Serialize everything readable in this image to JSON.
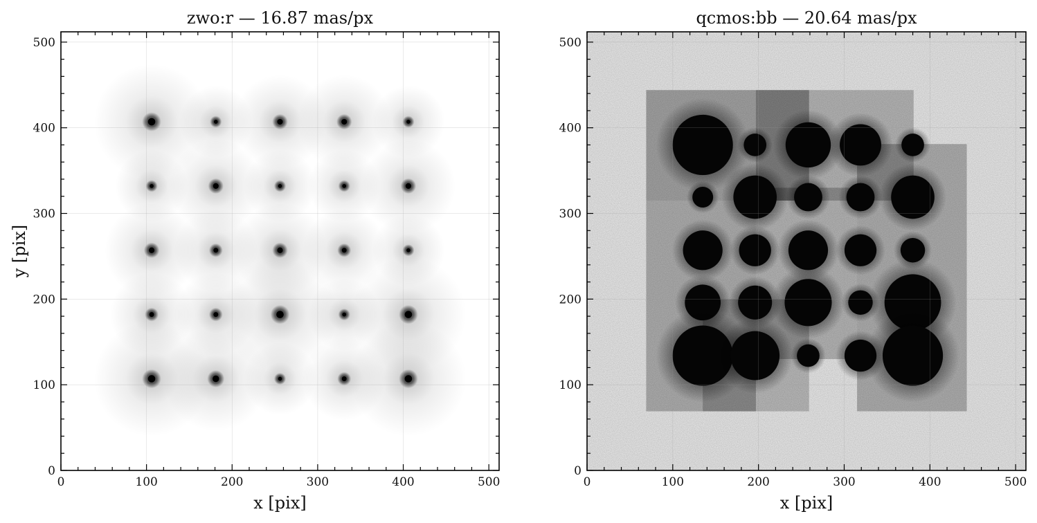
{
  "chart_data": [
    {
      "type": "heatmap",
      "title": "zwo:r — 16.87 mas/px",
      "xlabel": "x [pix]",
      "ylabel": "y [pix]",
      "xlim": [
        0,
        512
      ],
      "ylim": [
        0,
        512
      ],
      "xticks": [
        0,
        100,
        200,
        300,
        400,
        500
      ],
      "yticks": [
        0,
        100,
        200,
        300,
        400,
        500
      ],
      "grid": true,
      "background": "#ffffff",
      "sources": [
        {
          "x": 106,
          "y": 407,
          "size": 3
        },
        {
          "x": 181,
          "y": 407,
          "size": 1
        },
        {
          "x": 256,
          "y": 407,
          "size": 2
        },
        {
          "x": 331,
          "y": 407,
          "size": 2
        },
        {
          "x": 406,
          "y": 407,
          "size": 1
        },
        {
          "x": 106,
          "y": 332,
          "size": 1
        },
        {
          "x": 181,
          "y": 332,
          "size": 2
        },
        {
          "x": 256,
          "y": 332,
          "size": 1
        },
        {
          "x": 331,
          "y": 332,
          "size": 1
        },
        {
          "x": 406,
          "y": 332,
          "size": 2
        },
        {
          "x": 106,
          "y": 257,
          "size": 2
        },
        {
          "x": 181,
          "y": 257,
          "size": 1.5
        },
        {
          "x": 256,
          "y": 257,
          "size": 2
        },
        {
          "x": 331,
          "y": 257,
          "size": 1.5
        },
        {
          "x": 406,
          "y": 257,
          "size": 1
        },
        {
          "x": 106,
          "y": 182,
          "size": 1.5
        },
        {
          "x": 181,
          "y": 182,
          "size": 1.5
        },
        {
          "x": 256,
          "y": 182,
          "size": 3
        },
        {
          "x": 331,
          "y": 182,
          "size": 1
        },
        {
          "x": 406,
          "y": 182,
          "size": 3
        },
        {
          "x": 106,
          "y": 107,
          "size": 3
        },
        {
          "x": 181,
          "y": 107,
          "size": 2.5
        },
        {
          "x": 256,
          "y": 107,
          "size": 1
        },
        {
          "x": 331,
          "y": 107,
          "size": 1.5
        },
        {
          "x": 406,
          "y": 107,
          "size": 3
        }
      ]
    },
    {
      "type": "heatmap",
      "title": "qcmos:bb — 20.64 mas/px",
      "xlabel": "x [pix]",
      "xlim": [
        0,
        512
      ],
      "ylim": [
        0,
        512
      ],
      "xticks": [
        0,
        100,
        200,
        300,
        400,
        500
      ],
      "yticks": [
        0,
        100,
        200,
        300,
        400,
        500
      ],
      "grid": true,
      "background": "#eeeeee",
      "patches": [
        {
          "x0": 69,
          "x1": 259,
          "y0": 315,
          "y1": 444,
          "shade": 0.3
        },
        {
          "x0": 197,
          "x1": 381,
          "y0": 315,
          "y1": 444,
          "shade": 0.22
        },
        {
          "x0": 69,
          "x1": 197,
          "y0": 69,
          "y1": 315,
          "shade": 0.25
        },
        {
          "x0": 197,
          "x1": 315,
          "y0": 130,
          "y1": 330,
          "shade": 0.22
        },
        {
          "x0": 315,
          "x1": 443,
          "y0": 69,
          "y1": 381,
          "shade": 0.25
        },
        {
          "x0": 135,
          "x1": 259,
          "y0": 69,
          "y1": 200,
          "shade": 0.2
        }
      ],
      "sources": [
        {
          "x": 135,
          "y": 380,
          "size": 3.2
        },
        {
          "x": 196,
          "y": 380,
          "size": 1.2
        },
        {
          "x": 258,
          "y": 380,
          "size": 2.4
        },
        {
          "x": 319,
          "y": 380,
          "size": 2.2
        },
        {
          "x": 380,
          "y": 380,
          "size": 1.2
        },
        {
          "x": 135,
          "y": 319,
          "size": 1.1
        },
        {
          "x": 196,
          "y": 319,
          "size": 2.3
        },
        {
          "x": 258,
          "y": 319,
          "size": 1.5
        },
        {
          "x": 319,
          "y": 319,
          "size": 1.5
        },
        {
          "x": 380,
          "y": 319,
          "size": 2.3
        },
        {
          "x": 135,
          "y": 257,
          "size": 2.1
        },
        {
          "x": 196,
          "y": 257,
          "size": 1.7
        },
        {
          "x": 258,
          "y": 257,
          "size": 2.1
        },
        {
          "x": 319,
          "y": 257,
          "size": 1.7
        },
        {
          "x": 380,
          "y": 257,
          "size": 1.3
        },
        {
          "x": 135,
          "y": 196,
          "size": 1.9
        },
        {
          "x": 196,
          "y": 196,
          "size": 1.8
        },
        {
          "x": 258,
          "y": 196,
          "size": 2.5
        },
        {
          "x": 319,
          "y": 196,
          "size": 1.3
        },
        {
          "x": 380,
          "y": 196,
          "size": 3.0
        },
        {
          "x": 135,
          "y": 134,
          "size": 3.2
        },
        {
          "x": 196,
          "y": 134,
          "size": 2.6
        },
        {
          "x": 258,
          "y": 134,
          "size": 1.2
        },
        {
          "x": 319,
          "y": 134,
          "size": 1.7
        },
        {
          "x": 380,
          "y": 134,
          "size": 3.2
        }
      ]
    }
  ]
}
